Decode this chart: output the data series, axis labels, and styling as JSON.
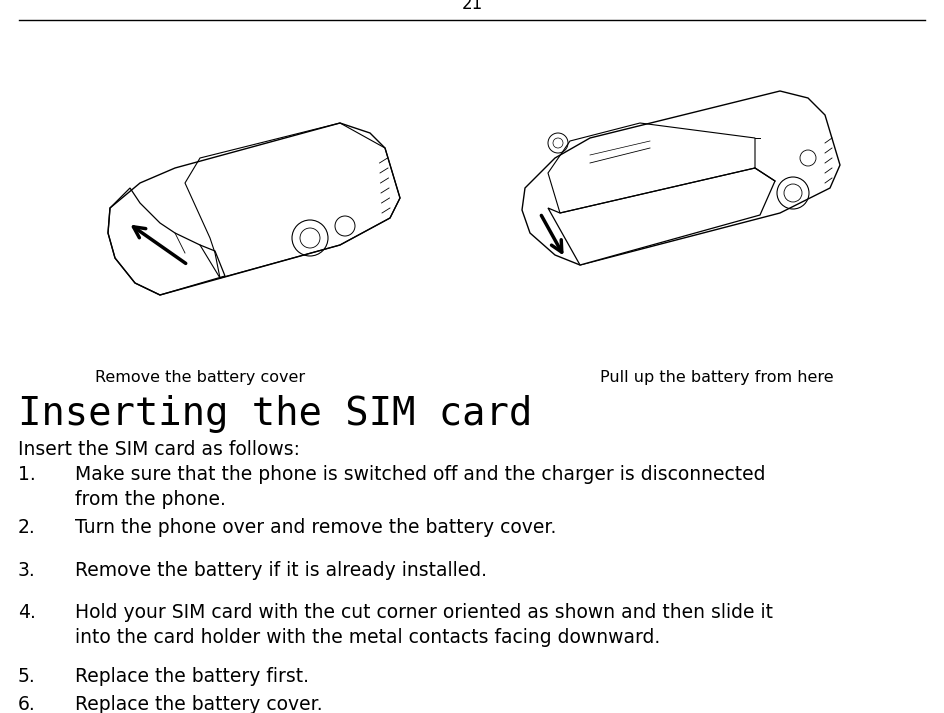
{
  "page_number": "21",
  "bg_color": "#ffffff",
  "text_color": "#000000",
  "page_num_fontsize": 12,
  "caption_left": "Remove the battery cover",
  "caption_right": "Pull up the battery from here",
  "caption_fontsize": 11.5,
  "heading": "Inserting the SIM card",
  "heading_fontsize": 28,
  "intro_text": "Insert the SIM card as follows:",
  "intro_fontsize": 13.5,
  "list_numbers": [
    "1.",
    "2.",
    "3.",
    "4.",
    "5.",
    "6."
  ],
  "list_items": [
    "Make sure that the phone is switched off and the charger is disconnected\nfrom the phone.",
    "Turn the phone over and remove the battery cover.",
    "Remove the battery if it is already installed.",
    "Hold your SIM card with the cut corner oriented as shown and then slide it\ninto the card holder with the metal contacts facing downward.",
    "Replace the battery first.",
    "Replace the battery cover."
  ],
  "list_fontsize": 13.5
}
